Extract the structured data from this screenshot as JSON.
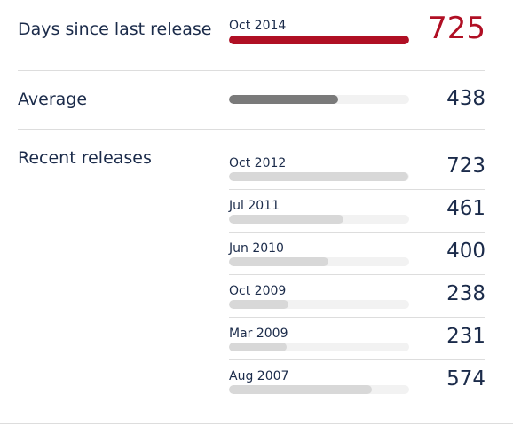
{
  "colors": {
    "current_bar": "#b00f24",
    "current_value": "#b00f24",
    "average_bar": "#7a7a7a",
    "release_bar": "#d8d8d8",
    "divider": "#dddddd"
  },
  "current": {
    "label": "Days since last release",
    "date": "Oct 2014",
    "value": "725",
    "days": 725
  },
  "average": {
    "label": "Average",
    "value": "438",
    "days": 438
  },
  "recent": {
    "label": "Recent releases",
    "items": [
      {
        "date": "Oct 2012",
        "value": "723",
        "days": 723
      },
      {
        "date": "Jul 2011",
        "value": "461",
        "days": 461
      },
      {
        "date": "Jun 2010",
        "value": "400",
        "days": 400
      },
      {
        "date": "Oct 2009",
        "value": "238",
        "days": 238
      },
      {
        "date": "Mar 2009",
        "value": "231",
        "days": 231
      },
      {
        "date": "Aug 2007",
        "value": "574",
        "days": 574
      }
    ]
  },
  "scale_max_days": 725
}
